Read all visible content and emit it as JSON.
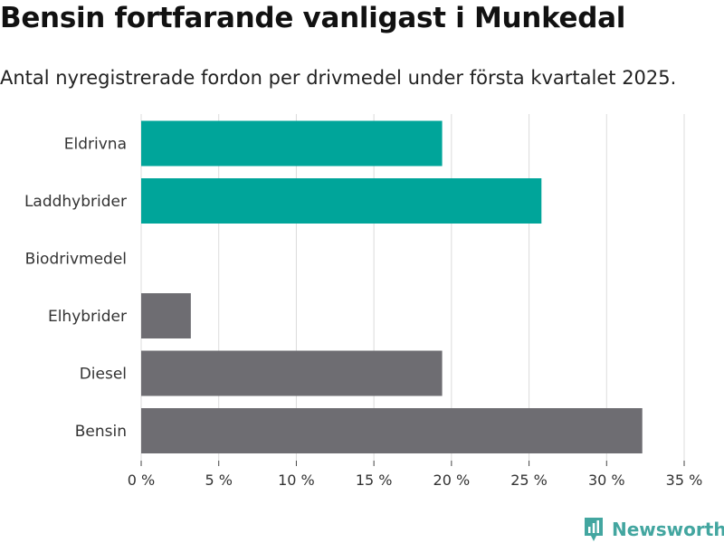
{
  "title": "Bensin fortfarande vanligast i Munkedal",
  "subtitle": "Antal nyregistrerade fordon per drivmedel under första kvartalet 2025.",
  "brand": {
    "name": "Newsworthy",
    "icon": "newsworthy-logo-icon",
    "color": "#43a6a0"
  },
  "colors": {
    "highlight": "#00a59a",
    "neutral": "#6e6d72",
    "grid": "#dcdcdc"
  },
  "chart_data": {
    "type": "bar",
    "orientation": "horizontal",
    "categories": [
      "Eldrivna",
      "Laddhybrider",
      "Biodrivmedel",
      "Elhybrider",
      "Diesel",
      "Bensin"
    ],
    "values": [
      19.4,
      25.8,
      0,
      3.2,
      19.4,
      32.3
    ],
    "highlighted": [
      true,
      true,
      false,
      false,
      false,
      false
    ],
    "xlim": [
      0,
      35
    ],
    "xticks": [
      0,
      5,
      10,
      15,
      20,
      25,
      30,
      35
    ],
    "xtick_labels": [
      "0 %",
      "5 %",
      "10 %",
      "15 %",
      "20 %",
      "25 %",
      "30 %",
      "35 %"
    ],
    "grid": true,
    "xlabel": "",
    "ylabel": ""
  }
}
